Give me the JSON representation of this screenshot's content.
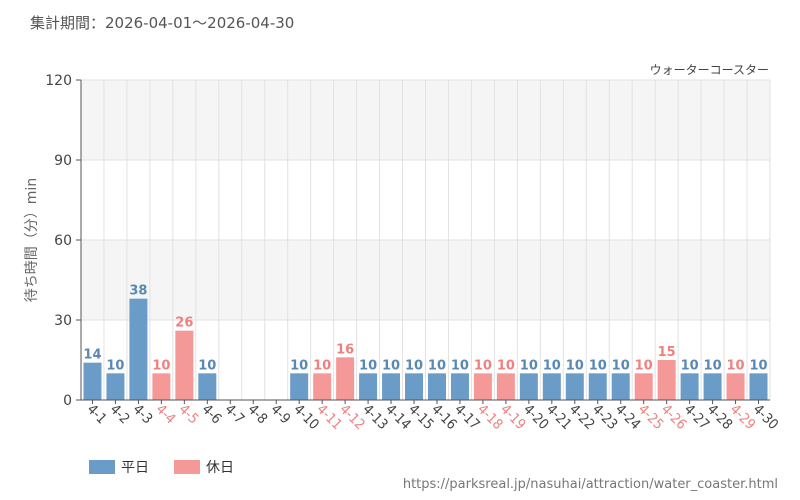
{
  "period_text": "集計期間：2026-04-01～2026-04-30",
  "source_url": "https://parksreal.jp/nasuhai/attraction/water_coaster.html",
  "colors": {
    "weekday": "#6b9bc7",
    "weekday_label": "#5a88b4",
    "holiday": "#f59898",
    "holiday_label": "#f08080",
    "band": "#f5f5f5",
    "grid": "#e2e2e2",
    "axis": "#555555"
  },
  "legend": [
    {
      "key": "weekday",
      "label": "平日"
    },
    {
      "key": "holiday",
      "label": "休日"
    }
  ],
  "chart_data": {
    "type": "bar",
    "title": "",
    "series_label": "ウォーターコースター",
    "ylabel": "待ち時間（分）min",
    "xlabel": "",
    "ylim": [
      0,
      120
    ],
    "yticks": [
      0,
      30,
      60,
      90,
      120
    ],
    "grid": true,
    "legend_position": "bottom-left",
    "categories": [
      "4-1",
      "4-2",
      "4-3",
      "4-4",
      "4-5",
      "4-6",
      "4-7",
      "4-8",
      "4-9",
      "4-10",
      "4-11",
      "4-12",
      "4-13",
      "4-14",
      "4-15",
      "4-16",
      "4-17",
      "4-18",
      "4-19",
      "4-20",
      "4-21",
      "4-22",
      "4-23",
      "4-24",
      "4-25",
      "4-26",
      "4-27",
      "4-28",
      "4-29",
      "4-30"
    ],
    "values": [
      14,
      10,
      38,
      10,
      26,
      10,
      null,
      null,
      null,
      10,
      10,
      16,
      10,
      10,
      10,
      10,
      10,
      10,
      10,
      10,
      10,
      10,
      10,
      10,
      10,
      15,
      10,
      10,
      10,
      10
    ],
    "day_type": [
      "weekday",
      "weekday",
      "weekday",
      "holiday",
      "holiday",
      "weekday",
      "weekday",
      "weekday",
      "weekday",
      "weekday",
      "holiday",
      "holiday",
      "weekday",
      "weekday",
      "weekday",
      "weekday",
      "weekday",
      "holiday",
      "holiday",
      "weekday",
      "weekday",
      "weekday",
      "weekday",
      "weekday",
      "holiday",
      "holiday",
      "weekday",
      "weekday",
      "holiday",
      "weekday"
    ]
  }
}
